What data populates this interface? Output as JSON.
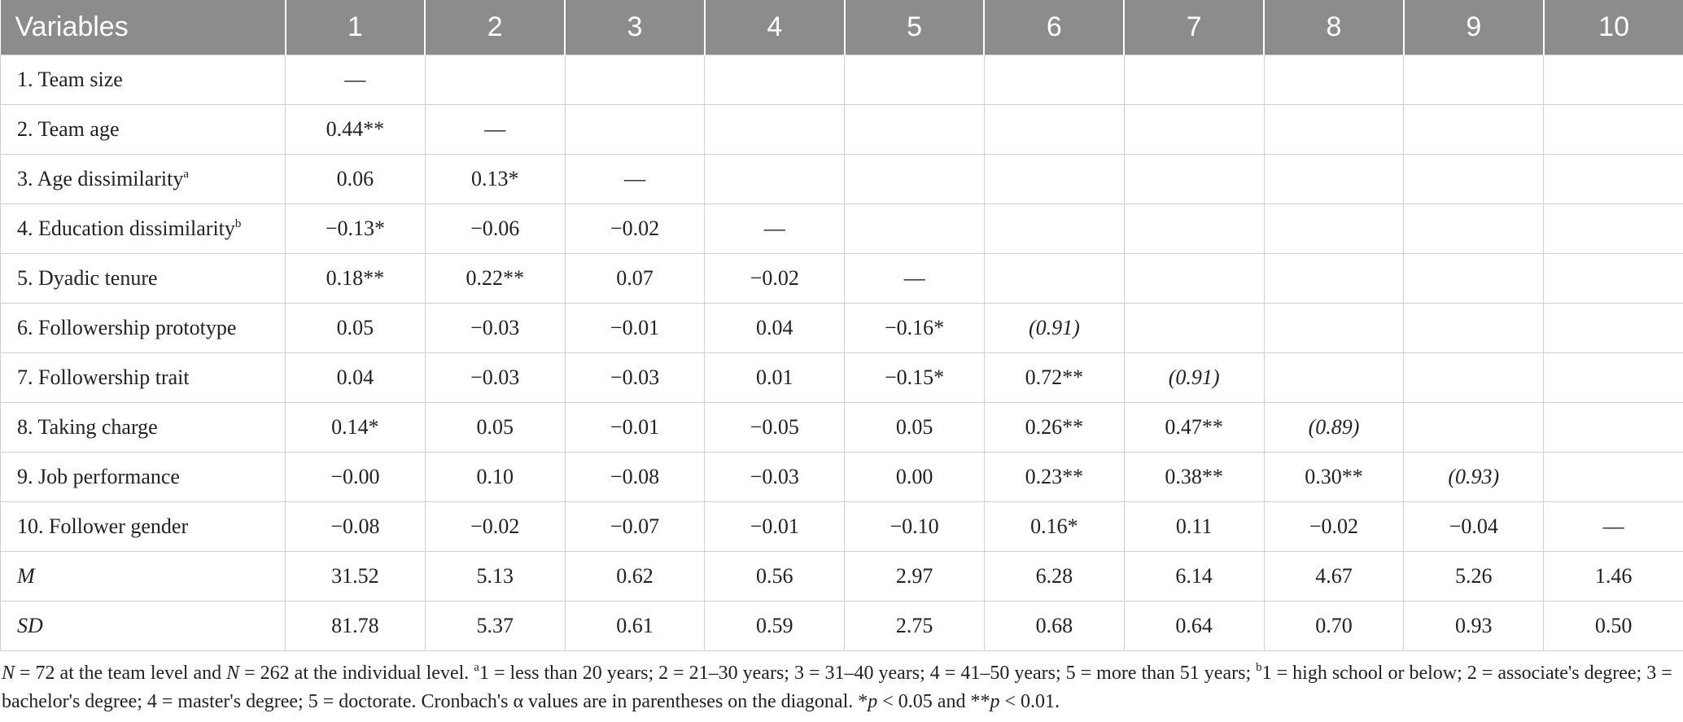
{
  "table": {
    "headers": [
      "Variables",
      "1",
      "2",
      "3",
      "4",
      "5",
      "6",
      "7",
      "8",
      "9",
      "10"
    ],
    "rows": [
      {
        "label": "1. Team size",
        "sup": "",
        "cells": [
          "—",
          "",
          "",
          "",
          "",
          "",
          "",
          "",
          "",
          ""
        ]
      },
      {
        "label": "2. Team age",
        "sup": "",
        "cells": [
          "0.44**",
          "—",
          "",
          "",
          "",
          "",
          "",
          "",
          "",
          ""
        ]
      },
      {
        "label": "3. Age dissimilarity",
        "sup": "a",
        "cells": [
          "0.06",
          "0.13*",
          "—",
          "",
          "",
          "",
          "",
          "",
          "",
          ""
        ]
      },
      {
        "label": "4. Education dissimilarity",
        "sup": "b",
        "cells": [
          "−0.13*",
          "−0.06",
          "−0.02",
          "—",
          "",
          "",
          "",
          "",
          "",
          ""
        ]
      },
      {
        "label": "5. Dyadic tenure",
        "sup": "",
        "cells": [
          "0.18**",
          "0.22**",
          "0.07",
          "−0.02",
          "—",
          "",
          "",
          "",
          "",
          ""
        ]
      },
      {
        "label": "6. Followership prototype",
        "sup": "",
        "cells": [
          "0.05",
          "−0.03",
          "−0.01",
          "0.04",
          "−0.16*",
          "(0.91)",
          "",
          "",
          "",
          ""
        ]
      },
      {
        "label": "7. Followership trait",
        "sup": "",
        "cells": [
          "0.04",
          "−0.03",
          "−0.03",
          "0.01",
          "−0.15*",
          "0.72**",
          "(0.91)",
          "",
          "",
          ""
        ]
      },
      {
        "label": "8. Taking charge",
        "sup": "",
        "cells": [
          "0.14*",
          "0.05",
          "−0.01",
          "−0.05",
          "0.05",
          "0.26**",
          "0.47**",
          "(0.89)",
          "",
          ""
        ]
      },
      {
        "label": "9. Job performance",
        "sup": "",
        "cells": [
          "−0.00",
          "0.10",
          "−0.08",
          "−0.03",
          "0.00",
          "0.23**",
          "0.38**",
          "0.30**",
          "(0.93)",
          ""
        ]
      },
      {
        "label": "10. Follower gender",
        "sup": "",
        "cells": [
          "−0.08",
          "−0.02",
          "−0.07",
          "−0.01",
          "−0.10",
          "0.16*",
          "0.11",
          "−0.02",
          "−0.04",
          "—"
        ]
      },
      {
        "label": "M",
        "sup": "",
        "italic_label": true,
        "cells": [
          "31.52",
          "5.13",
          "0.62",
          "0.56",
          "2.97",
          "6.28",
          "6.14",
          "4.67",
          "5.26",
          "1.46"
        ]
      },
      {
        "label": "SD",
        "sup": "",
        "italic_label": true,
        "cells": [
          "81.78",
          "5.37",
          "0.61",
          "0.59",
          "2.75",
          "0.68",
          "0.64",
          "0.70",
          "0.93",
          "0.50"
        ]
      }
    ]
  },
  "note": {
    "n1": "N",
    "t1": " = 72 at the team level and ",
    "n2": "N",
    "t2": " = 262 at the individual level. ",
    "sup_a": "a",
    "t3": "1 = less than 20 years; 2 = 21–30 years; 3 = 31–40 years; 4 = 41–50 years; 5 = more than 51 years; ",
    "sup_b": "b",
    "t4": "1 = high school or below; 2 = associate's degree; 3 = bachelor's degree; 4 = master's degree; 5 = doctorate. Cronbach's α values are in parentheses on the diagonal. *",
    "p1": "p",
    "t5": " < 0.05 and **",
    "p2": "p",
    "t6": " < 0.01."
  }
}
